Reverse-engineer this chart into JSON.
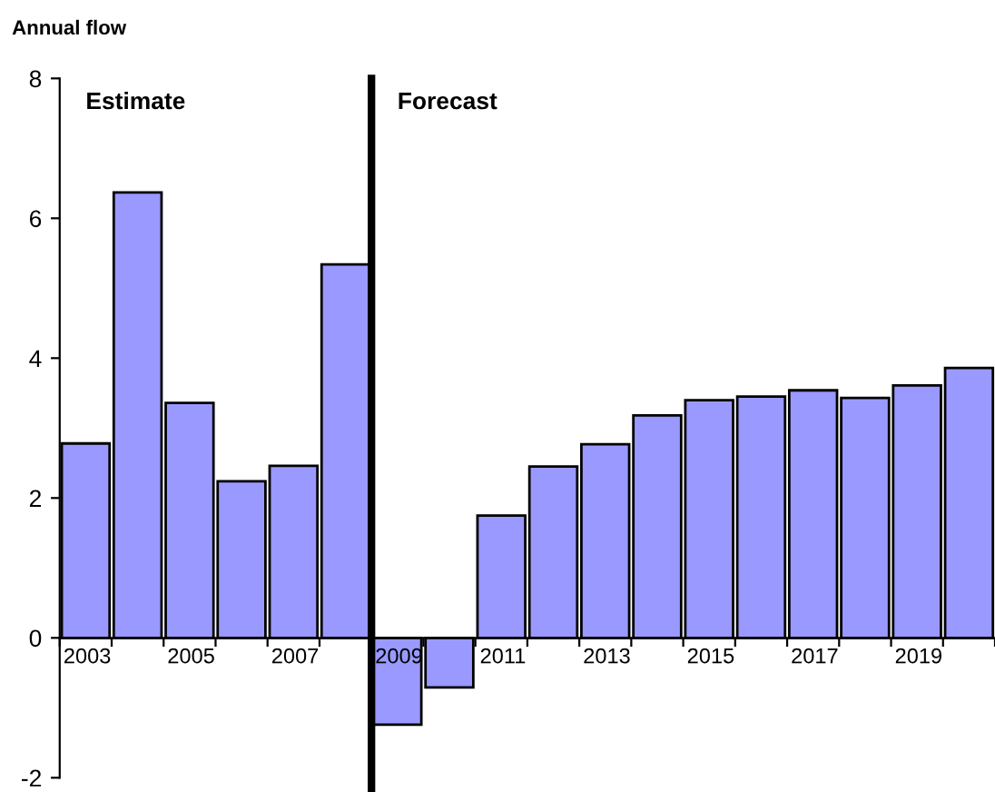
{
  "chart_data": {
    "type": "bar",
    "ylabel": "Annual flow",
    "categories": [
      "2003",
      null,
      "2005",
      null,
      "2007",
      null,
      "2009",
      null,
      "2011",
      null,
      "2013",
      null,
      "2015",
      null,
      "2017",
      null,
      "2019",
      null
    ],
    "values": [
      2.78,
      6.37,
      3.36,
      2.24,
      2.46,
      5.34,
      -1.24,
      -0.71,
      1.75,
      2.45,
      2.77,
      3.18,
      3.4,
      3.45,
      3.54,
      3.43,
      3.61,
      3.86
    ],
    "color": "#9999ff",
    "ylim": [
      -2,
      8
    ],
    "yticks": [
      -2,
      0,
      2,
      4,
      6,
      8
    ],
    "annotations": [
      "Estimate",
      "Forecast"
    ],
    "grid": false,
    "legend": false
  }
}
